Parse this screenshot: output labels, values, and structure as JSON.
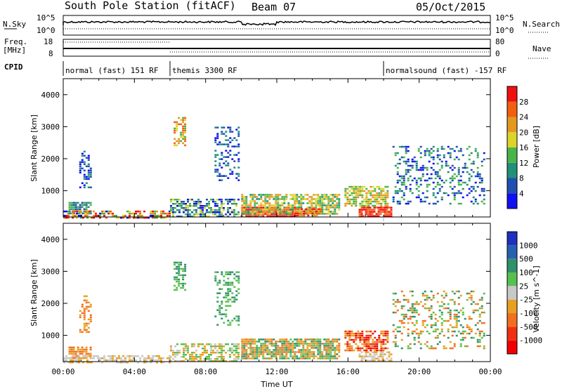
{
  "header": {
    "station": "South Pole Station (fitACF)",
    "beam": "Beam 07",
    "date": "05/Oct/2015"
  },
  "summary": {
    "nsky_label": "N.Sky",
    "nsky_top": "10^5",
    "nsky_bottom": "10^0",
    "freq_label_1": "Freq.",
    "freq_label_2": "[MHz]",
    "freq_top": "18",
    "freq_bottom": "8",
    "cpid_label": "CPID",
    "nsearch_label": "N.Search",
    "nsearch_top": "10^5",
    "nsearch_bottom": "10^0",
    "nave_label": "Nave",
    "nave_top": "80",
    "nave_bottom": "0"
  },
  "cpid": [
    {
      "start_hour": 0,
      "end_hour": 6,
      "label": "normal (fast) 151 RF"
    },
    {
      "start_hour": 6,
      "end_hour": 18,
      "label": "themis 3300 RF"
    },
    {
      "start_hour": 18,
      "end_hour": 24,
      "label": "normalsound (fast) -157 RF"
    }
  ],
  "chart_data": [
    {
      "type": "heatmap",
      "panel": "power",
      "ylabel": "Slant Range [km]",
      "xlabel": "Time UT",
      "x_ticks": [
        "00:00",
        "04:00",
        "08:00",
        "12:00",
        "16:00",
        "20:00",
        "00:00"
      ],
      "y_ticks": [
        1000,
        2000,
        3000,
        4000
      ],
      "xlim": [
        0,
        24
      ],
      "ylim": [
        180,
        4500
      ],
      "colorbar": {
        "label": "Power [dB]",
        "ticks": [
          "4",
          "8",
          "12",
          "16",
          "20",
          "24",
          "28"
        ],
        "colors": [
          "#1010f0",
          "#2050b0",
          "#20907a",
          "#48b44a",
          "#dcd42a",
          "#e49820",
          "#f06010",
          "#f01010"
        ]
      },
      "scatter_regions": [
        {
          "t0": 0.3,
          "t1": 1.6,
          "r0": 300,
          "r1": 650,
          "density": 0.8,
          "levels": [
            1,
            2,
            3
          ]
        },
        {
          "t0": 0.0,
          "t1": 6.0,
          "r0": 180,
          "r1": 380,
          "density": 0.55,
          "levels": [
            0,
            3,
            4,
            5,
            6,
            7
          ]
        },
        {
          "t0": 0.9,
          "t1": 1.6,
          "r0": 1100,
          "r1": 2250,
          "density": 0.35,
          "levels": [
            0,
            1,
            2
          ]
        },
        {
          "t0": 6.0,
          "t1": 9.8,
          "r0": 200,
          "r1": 750,
          "density": 0.6,
          "levels": [
            0,
            1,
            2,
            3,
            4
          ]
        },
        {
          "t0": 6.2,
          "t1": 6.8,
          "r0": 2400,
          "r1": 3300,
          "density": 0.5,
          "levels": [
            3,
            4,
            5,
            6
          ]
        },
        {
          "t0": 8.5,
          "t1": 9.9,
          "r0": 1300,
          "r1": 3000,
          "density": 0.3,
          "levels": [
            0,
            1,
            2
          ]
        },
        {
          "t0": 10.0,
          "t1": 13.0,
          "r0": 200,
          "r1": 500,
          "density": 0.95,
          "levels": [
            6,
            7,
            7
          ]
        },
        {
          "t0": 10.0,
          "t1": 15.5,
          "r0": 250,
          "r1": 900,
          "density": 0.75,
          "levels": [
            2,
            3,
            4,
            5
          ]
        },
        {
          "t0": 13.0,
          "t1": 14.5,
          "r0": 200,
          "r1": 450,
          "density": 0.9,
          "levels": [
            5,
            6,
            7
          ]
        },
        {
          "t0": 15.8,
          "t1": 18.2,
          "r0": 500,
          "r1": 1150,
          "density": 0.7,
          "levels": [
            3,
            4,
            5
          ]
        },
        {
          "t0": 16.6,
          "t1": 18.4,
          "r0": 200,
          "r1": 500,
          "density": 0.85,
          "levels": [
            6,
            7
          ]
        },
        {
          "t0": 18.5,
          "t1": 23.7,
          "r0": 600,
          "r1": 2400,
          "density": 0.25,
          "levels": [
            0,
            1,
            2,
            3
          ]
        }
      ]
    },
    {
      "type": "heatmap",
      "panel": "velocity",
      "ylabel": "Slant Range [km]",
      "xlabel": "Time UT",
      "x_ticks": [
        "00:00",
        "04:00",
        "08:00",
        "12:00",
        "16:00",
        "20:00",
        "00:00"
      ],
      "y_ticks": [
        1000,
        2000,
        3000,
        4000
      ],
      "xlim": [
        0,
        24
      ],
      "ylim": [
        180,
        4500
      ],
      "colorbar": {
        "label": "Velocity [m s^-1]",
        "ticks": [
          "1000",
          "500",
          "100",
          "25",
          "-25",
          "-100",
          "-500",
          "-1000"
        ],
        "colors": [
          "#2030c0",
          "#2860b0",
          "#30906a",
          "#58c050",
          "#c8c8c8",
          "#e8a020",
          "#f07020",
          "#f03010",
          "#f00000"
        ]
      },
      "scatter_regions": [
        {
          "t0": 0.3,
          "t1": 1.6,
          "r0": 300,
          "r1": 650,
          "density": 0.8,
          "levels": [
            2,
            3
          ]
        },
        {
          "t0": 0.0,
          "t1": 6.0,
          "r0": 180,
          "r1": 380,
          "density": 0.5,
          "levels": [
            4,
            4,
            3
          ]
        },
        {
          "t0": 0.9,
          "t1": 1.6,
          "r0": 1100,
          "r1": 2250,
          "density": 0.4,
          "levels": [
            2,
            3
          ]
        },
        {
          "t0": 6.0,
          "t1": 9.8,
          "r0": 200,
          "r1": 750,
          "density": 0.6,
          "levels": [
            3,
            4,
            5
          ]
        },
        {
          "t0": 6.2,
          "t1": 6.8,
          "r0": 2400,
          "r1": 3300,
          "density": 0.5,
          "levels": [
            5,
            6
          ]
        },
        {
          "t0": 8.5,
          "t1": 9.9,
          "r0": 1300,
          "r1": 3000,
          "density": 0.3,
          "levels": [
            5,
            6
          ]
        },
        {
          "t0": 10.0,
          "t1": 15.5,
          "r0": 250,
          "r1": 900,
          "density": 0.8,
          "levels": [
            2,
            3,
            5,
            6
          ]
        },
        {
          "t0": 15.8,
          "t1": 18.2,
          "r0": 500,
          "r1": 1150,
          "density": 0.7,
          "levels": [
            0,
            1,
            2,
            3
          ]
        },
        {
          "t0": 16.6,
          "t1": 18.4,
          "r0": 200,
          "r1": 500,
          "density": 0.6,
          "levels": [
            3,
            4
          ]
        },
        {
          "t0": 18.5,
          "t1": 23.7,
          "r0": 600,
          "r1": 2400,
          "density": 0.25,
          "levels": [
            2,
            3,
            5,
            6
          ]
        }
      ]
    }
  ]
}
